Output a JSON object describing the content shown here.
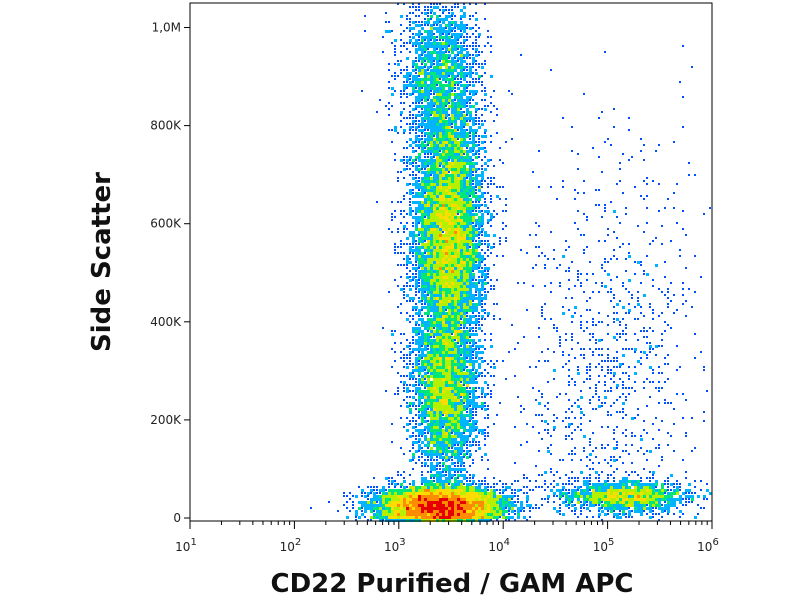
{
  "chart_data": {
    "type": "scatter",
    "title": "",
    "xlabel": "CD22 Purified / GAM APC",
    "ylabel": "Side Scatter",
    "x_scale": "log",
    "xlim": [
      10,
      1000000
    ],
    "ylim": [
      0,
      1050000
    ],
    "x_ticks": [
      {
        "base": "10",
        "exp": "1",
        "value": 10
      },
      {
        "base": "10",
        "exp": "2",
        "value": 100
      },
      {
        "base": "10",
        "exp": "3",
        "value": 1000
      },
      {
        "base": "10",
        "exp": "4",
        "value": 10000
      },
      {
        "base": "10",
        "exp": "5",
        "value": 100000
      },
      {
        "base": "10",
        "exp": "6",
        "value": 1000000
      }
    ],
    "y_ticks": [
      {
        "label": "0",
        "value": 0
      },
      {
        "label": "200K",
        "value": 200000
      },
      {
        "label": "400K",
        "value": 400000
      },
      {
        "label": "600K",
        "value": 600000
      },
      {
        "label": "800K",
        "value": 800000
      },
      {
        "label": "1,0M",
        "value": 1000000
      }
    ],
    "grid": false,
    "density_colors": [
      "#0000c8",
      "#0050ff",
      "#00b4ff",
      "#00e678",
      "#b4f000",
      "#ffdc00",
      "#ff8c00",
      "#e60000"
    ],
    "populations": [
      {
        "name": "",
        "x_center": 3000,
        "x_spread_decades": 0.17,
        "y_center": 580000,
        "y_spread": 130000,
        "weight": 0.3
      },
      {
        "name": "",
        "x_center": 2800,
        "x_spread_decades": 0.16,
        "y_center": 250000,
        "y_spread": 90000,
        "weight": 0.14
      },
      {
        "name": "",
        "x_center": 2500,
        "x_spread_decades": 0.2,
        "y_center": 900000,
        "y_spread": 90000,
        "weight": 0.08
      },
      {
        "name": "",
        "x_center": 2500,
        "x_spread_decades": 0.3,
        "y_center": 25000,
        "y_spread": 20000,
        "weight": 0.26
      },
      {
        "name": "",
        "x_center": 150000,
        "x_spread_decades": 0.3,
        "y_center": 45000,
        "y_spread": 15000,
        "weight": 0.06
      },
      {
        "name": "",
        "x_center": 100000,
        "x_spread_decades": 0.45,
        "y_center": 300000,
        "y_spread": 220000,
        "weight": 0.04
      }
    ]
  }
}
